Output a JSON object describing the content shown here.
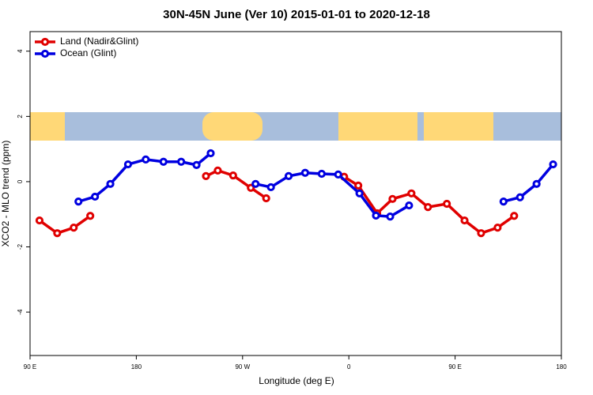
{
  "chart_data": {
    "type": "line",
    "title": "30N-45N June (Ver 10)   2015-01-01 to 2020-12-18",
    "x_label": "Longitude (deg E)",
    "y_label": "XCO2 - MLO trend (ppm)",
    "xlim": [
      90,
      540
    ],
    "xticks": [
      {
        "value": 90,
        "label": "90 E"
      },
      180,
      {
        "value": 270,
        "label": "90 W"
      },
      {
        "value": 360,
        "label": "0"
      },
      {
        "value": 450,
        "label": "90 E"
      },
      {
        "value": 540,
        "label": "180"
      }
    ],
    "ylim": [
      -5.33,
      4.6
    ],
    "yticks": [
      -4,
      -2,
      0,
      2,
      4
    ],
    "legend": "top-left",
    "series": [
      {
        "name": "Land (Nadir&Glint)",
        "color": "#e00000",
        "x": [
          98,
          113,
          127,
          141,
          null,
          239,
          249,
          262,
          277,
          290,
          null,
          356,
          368,
          384,
          397,
          413,
          427,
          443,
          458,
          472,
          486,
          500
        ],
        "values": [
          -1.19,
          -1.58,
          -1.41,
          -1.05,
          null,
          0.17,
          0.34,
          0.19,
          -0.19,
          -0.51,
          null,
          0.15,
          -0.12,
          -0.97,
          -0.53,
          -0.36,
          -0.78,
          -0.68,
          -1.19,
          -1.58,
          -1.41,
          -1.05
        ]
      },
      {
        "name": "Ocean (Glint)",
        "color": "#0000e0",
        "x": [
          131,
          145,
          158,
          173,
          188,
          203,
          218,
          231,
          243,
          null,
          281,
          294,
          309,
          323,
          337,
          351,
          369,
          383,
          395,
          411,
          null,
          491,
          505,
          519,
          533
        ],
        "values": [
          -0.61,
          -0.46,
          -0.07,
          0.53,
          0.68,
          0.61,
          0.61,
          0.51,
          0.87,
          null,
          -0.07,
          -0.17,
          0.17,
          0.27,
          0.24,
          0.22,
          -0.36,
          -1.04,
          -1.07,
          -0.73,
          null,
          -0.61,
          -0.48,
          -0.07,
          0.53
        ]
      }
    ]
  }
}
